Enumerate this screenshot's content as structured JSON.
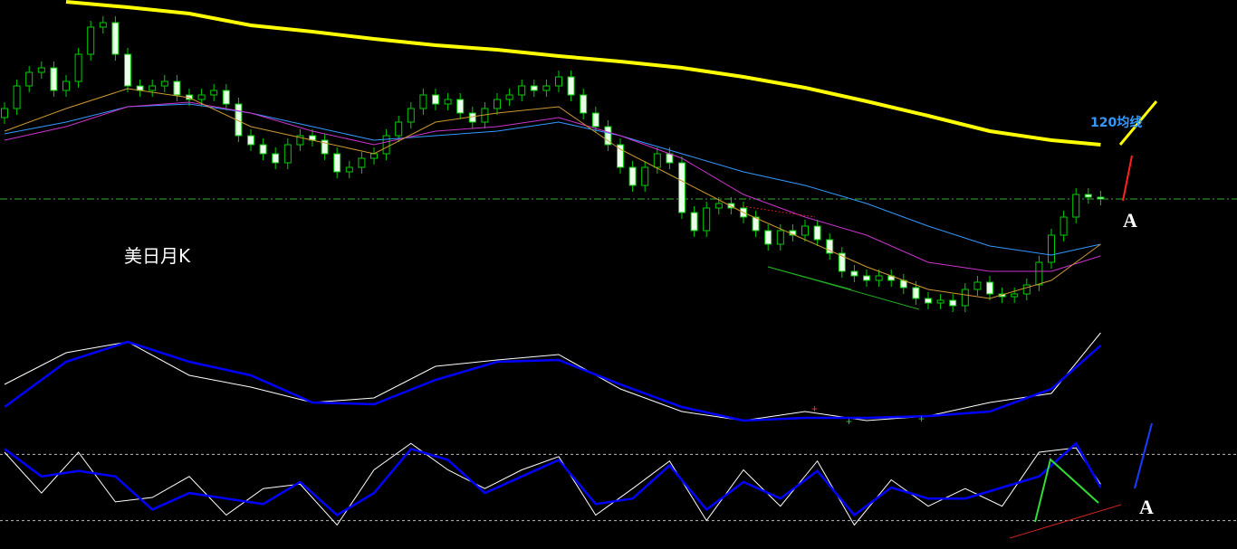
{
  "chart_data": [
    {
      "type": "candlestick",
      "title": "美日月K",
      "open": [
        270,
        280,
        305,
        320,
        325,
        300,
        310,
        340,
        370,
        375,
        340,
        305,
        300,
        305,
        310,
        295,
        290,
        295,
        300,
        285,
        250,
        240,
        230,
        220,
        240,
        250,
        245,
        230,
        210,
        215,
        225,
        230,
        250,
        265,
        280,
        295,
        285,
        290,
        275,
        265,
        280,
        290,
        295,
        305,
        300,
        305,
        315,
        295,
        275,
        260,
        240,
        215,
        195,
        215,
        230,
        220,
        165,
        145,
        170,
        175,
        170,
        160,
        145,
        130,
        145,
        140,
        150,
        135,
        120,
        100,
        95,
        90,
        95,
        90,
        82,
        70,
        65,
        68,
        62,
        80,
        88,
        75,
        72,
        75,
        85,
        110,
        140,
        160,
        185,
        182
      ],
      "close": [
        280,
        305,
        320,
        325,
        300,
        310,
        340,
        370,
        375,
        340,
        305,
        300,
        305,
        310,
        295,
        290,
        295,
        300,
        285,
        250,
        240,
        230,
        220,
        240,
        250,
        245,
        230,
        210,
        215,
        225,
        230,
        250,
        265,
        280,
        295,
        285,
        290,
        275,
        265,
        280,
        290,
        295,
        305,
        300,
        305,
        315,
        295,
        275,
        260,
        240,
        215,
        195,
        215,
        230,
        220,
        165,
        145,
        170,
        175,
        170,
        160,
        145,
        130,
        145,
        140,
        150,
        135,
        120,
        100,
        95,
        90,
        95,
        90,
        82,
        70,
        65,
        68,
        62,
        80,
        88,
        75,
        72,
        75,
        85,
        110,
        140,
        160,
        185,
        182,
        180
      ],
      "high": [
        287,
        312,
        327,
        332,
        332,
        317,
        347,
        377,
        382,
        382,
        347,
        312,
        312,
        317,
        317,
        302,
        302,
        307,
        307,
        292,
        257,
        247,
        237,
        247,
        257,
        257,
        252,
        237,
        222,
        232,
        237,
        257,
        272,
        287,
        302,
        302,
        297,
        297,
        282,
        287,
        297,
        302,
        312,
        312,
        312,
        322,
        322,
        302,
        282,
        267,
        247,
        222,
        222,
        237,
        237,
        227,
        172,
        177,
        182,
        182,
        177,
        167,
        152,
        152,
        152,
        157,
        157,
        142,
        127,
        107,
        102,
        102,
        102,
        97,
        89,
        77,
        75,
        75,
        87,
        95,
        95,
        82,
        82,
        92,
        117,
        147,
        167,
        192,
        192,
        189
      ],
      "low": [
        263,
        273,
        298,
        313,
        293,
        293,
        303,
        333,
        363,
        333,
        298,
        293,
        293,
        298,
        288,
        283,
        283,
        288,
        278,
        243,
        233,
        223,
        213,
        213,
        233,
        238,
        223,
        203,
        203,
        208,
        218,
        223,
        243,
        258,
        273,
        278,
        278,
        268,
        258,
        258,
        273,
        283,
        288,
        293,
        293,
        298,
        288,
        268,
        253,
        233,
        208,
        188,
        188,
        208,
        213,
        158,
        138,
        138,
        163,
        163,
        153,
        138,
        123,
        123,
        133,
        133,
        128,
        113,
        93,
        88,
        83,
        83,
        83,
        75,
        63,
        58,
        58,
        55,
        55,
        73,
        68,
        65,
        65,
        68,
        78,
        103,
        133,
        153,
        175,
        173
      ],
      "up_color": "#00cc00",
      "down_fill": "#e8ffe8",
      "ylim": [
        40,
        400
      ],
      "reference_line": 180,
      "reference_color": "#33aa33",
      "overlays": {
        "x": [
          0,
          5,
          10,
          15,
          20,
          25,
          30,
          35,
          40,
          45,
          50,
          55,
          60,
          65,
          70,
          75,
          80,
          85,
          89
        ],
        "series": [
          {
            "color": "#ffff00",
            "values": [
              null,
              398,
              392,
              385,
              372,
              365,
              357,
              350,
              345,
              338,
              332,
              325,
              315,
              303,
              288,
              272,
              255,
              245,
              240
            ]
          },
          {
            "color": "#3399ff",
            "values": [
              252,
              265,
              282,
              285,
              275,
              260,
              245,
              250,
              255,
              265,
              250,
              230,
              210,
              195,
              175,
              150,
              128,
              118,
              130
            ]
          },
          {
            "color": "#cc33cc",
            "values": [
              245,
              260,
              282,
              287,
              275,
              255,
              240,
              255,
              260,
              270,
              250,
              225,
              185,
              160,
              140,
              110,
              100,
              100,
              117
            ]
          },
          {
            "color": "#cc9933",
            "values": [
              255,
              280,
              302,
              292,
              260,
              245,
              230,
              265,
              275,
              282,
              235,
              200,
              165,
              135,
              105,
              80,
              70,
              90,
              130
            ]
          }
        ]
      },
      "annotations": [
        "120均线",
        "A"
      ]
    },
    {
      "type": "line",
      "ylim": [
        0,
        120
      ],
      "x": [
        0,
        5,
        10,
        15,
        20,
        25,
        30,
        35,
        40,
        45,
        50,
        55,
        60,
        65,
        70,
        75,
        80,
        85,
        89
      ],
      "series": [
        {
          "color": "#ffffff",
          "values": [
            50,
            85,
            97,
            60,
            47,
            30,
            35,
            70,
            77,
            83,
            45,
            20,
            10,
            20,
            10,
            15,
            30,
            40,
            107
          ]
        },
        {
          "color": "#0000ff",
          "values": [
            25,
            75,
            97,
            75,
            60,
            30,
            28,
            55,
            75,
            77,
            50,
            25,
            10,
            13,
            13,
            15,
            20,
            45,
            93
          ]
        }
      ]
    },
    {
      "type": "line",
      "ylim": [
        0,
        100
      ],
      "reference_lines": [
        20,
        80
      ],
      "x": [
        0,
        3,
        6,
        9,
        12,
        15,
        18,
        21,
        24,
        27,
        30,
        33,
        36,
        39,
        42,
        45,
        48,
        51,
        54,
        57,
        60,
        63,
        66,
        69,
        72,
        75,
        78,
        81,
        84,
        87,
        89
      ],
      "series": [
        {
          "color": "#ffffff",
          "values": [
            82,
            45,
            82,
            37,
            41,
            60,
            25,
            49,
            53,
            16,
            66,
            90,
            66,
            49,
            66,
            78,
            25,
            49,
            74,
            20,
            66,
            33,
            74,
            16,
            57,
            33,
            49,
            33,
            82,
            86,
            53
          ]
        },
        {
          "color": "#0000ff",
          "values": [
            85,
            60,
            65,
            60,
            30,
            45,
            40,
            35,
            55,
            25,
            45,
            85,
            75,
            45,
            60,
            75,
            35,
            40,
            70,
            30,
            55,
            40,
            65,
            25,
            50,
            40,
            40,
            50,
            60,
            90,
            50
          ]
        }
      ],
      "annotations": [
        "A"
      ]
    }
  ]
}
